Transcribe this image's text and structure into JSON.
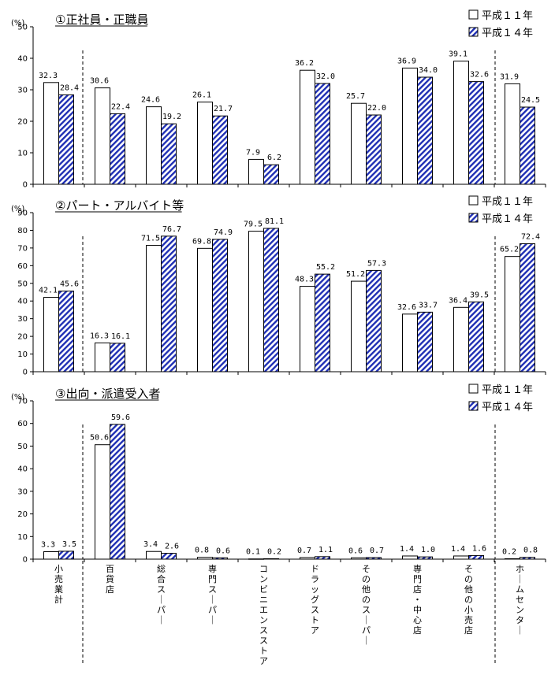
{
  "chart_data": [
    {
      "type": "bar",
      "title": "①正社員・正職員",
      "unit_label": "(%)",
      "ylim": [
        0,
        50
      ],
      "yticks": [
        0,
        10,
        20,
        30,
        40,
        50
      ],
      "categories": [
        "小売業計",
        "百貨店",
        "総合スーパー",
        "専門スーパー",
        "コンビニエンスストア",
        "ドラッグストア",
        "その他のスーパー",
        "専門店・中心店",
        "その他の小売店",
        "ホームセンター"
      ],
      "series": [
        {
          "name": "平成１１年",
          "values": [
            32.3,
            30.6,
            24.6,
            26.1,
            7.9,
            36.2,
            25.7,
            36.9,
            39.1,
            31.9
          ],
          "labels": [
            "32.3",
            "30.6",
            "24.6",
            "26.1",
            "7.9",
            "36.2",
            "25.7",
            "36.9",
            "39.1",
            "31.9"
          ]
        },
        {
          "name": "平成１４年",
          "values": [
            28.4,
            22.4,
            19.2,
            21.7,
            6.2,
            32.0,
            22.0,
            34.0,
            32.6,
            24.5
          ],
          "labels": [
            "28.4",
            "22.4",
            "19.2",
            "21.7",
            "6.2",
            "32.0",
            "22.0",
            "34.0",
            "32.6",
            "24.5"
          ]
        }
      ]
    },
    {
      "type": "bar",
      "title": "②パート・アルバイト等",
      "unit_label": "(%)",
      "ylim": [
        0,
        90
      ],
      "yticks": [
        0,
        10,
        20,
        30,
        40,
        50,
        60,
        70,
        80,
        90
      ],
      "categories": [
        "小売業計",
        "百貨店",
        "総合スーパー",
        "専門スーパー",
        "コンビニエンスストア",
        "ドラッグストア",
        "その他のスーパー",
        "専門店・中心店",
        "その他の小売店",
        "ホームセンター"
      ],
      "series": [
        {
          "name": "平成１１年",
          "values": [
            42.1,
            16.3,
            71.5,
            69.8,
            79.5,
            48.3,
            51.2,
            32.6,
            36.4,
            65.2
          ],
          "labels": [
            "42.1",
            "16.3",
            "71.5",
            "69.8",
            "79.5",
            "48.3",
            "51.2",
            "32.6",
            "36.4",
            "65.2"
          ]
        },
        {
          "name": "平成１４年",
          "values": [
            45.6,
            16.1,
            76.7,
            74.9,
            81.1,
            55.2,
            57.3,
            33.7,
            39.5,
            72.4
          ],
          "labels": [
            "45.6",
            "16.1",
            "76.7",
            "74.9",
            "81.1",
            "55.2",
            "57.3",
            "33.7",
            "39.5",
            "72.4"
          ]
        }
      ]
    },
    {
      "type": "bar",
      "title": "③出向・派遣受入者",
      "unit_label": "(%)",
      "ylim": [
        0,
        70
      ],
      "yticks": [
        0,
        10,
        20,
        30,
        40,
        50,
        60,
        70
      ],
      "categories": [
        "小売業計",
        "百貨店",
        "総合スーパー",
        "専門スーパー",
        "コンビニエンスストア",
        "ドラッグストア",
        "その他のスーパー",
        "専門店・中心店",
        "その他の小売店",
        "ホームセンター"
      ],
      "series": [
        {
          "name": "平成１１年",
          "values": [
            3.3,
            50.6,
            3.4,
            0.8,
            0.1,
            0.7,
            0.6,
            1.4,
            1.4,
            0.2
          ],
          "labels": [
            "3.3",
            "50.6",
            "3.4",
            "0.8",
            "0.1",
            "0.7",
            "0.6",
            "1.4",
            "1.4",
            "0.2"
          ]
        },
        {
          "name": "平成１４年",
          "values": [
            3.5,
            59.6,
            2.6,
            0.6,
            0.2,
            1.1,
            0.7,
            1.0,
            1.6,
            0.8
          ],
          "labels": [
            "3.5",
            "59.6",
            "2.6",
            "0.6",
            "0.2",
            "1.1",
            "0.7",
            "1.0",
            "1.6",
            "0.8"
          ]
        }
      ]
    }
  ],
  "category_labels_vertical": [
    "小売業計",
    "百貨店",
    "総合スーパー",
    "専門スーパー",
    "コンビニエンスストア",
    "ドラッグストア",
    "その他のスーパー",
    "専門店・中心店",
    "その他の小売店",
    "ホームセンター"
  ],
  "legend_position": "top-right",
  "colors": {
    "series2_hatch": "#1f2fb4",
    "axis": "#000000",
    "bar_fill_1": "#ffffff"
  }
}
